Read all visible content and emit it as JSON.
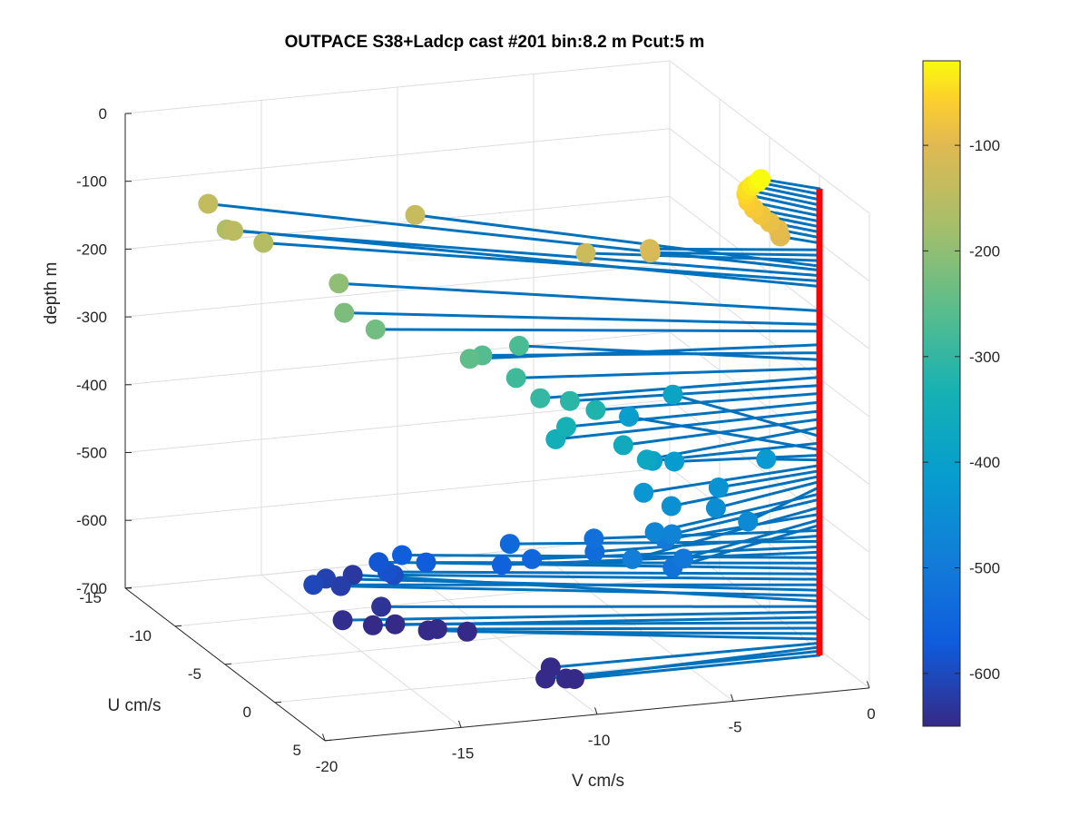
{
  "chart_data": {
    "type": "scatter",
    "title": "OUTPACE S38+Ladcp cast #201 bin:8.2 m  Pcut:5 m",
    "xlabel": "V cm/s",
    "ylabel": "U cm/s",
    "zlabel": "depth m",
    "xlim": [
      -20,
      0
    ],
    "ylim": [
      -15,
      5
    ],
    "zlim": [
      -700,
      0
    ],
    "x_ticks": [
      -20,
      -15,
      -10,
      -5,
      0
    ],
    "y_ticks": [
      -15,
      -10,
      -5,
      0,
      5
    ],
    "z_ticks": [
      0,
      -100,
      -200,
      -300,
      -400,
      -500,
      -600,
      -700
    ],
    "grid": true,
    "view": "3d",
    "origin_line_color": "#ff0000",
    "vector_color": "#0072bd",
    "colorbar": {
      "label": "",
      "range": [
        -650,
        -20
      ],
      "ticks": [
        -100,
        -200,
        -300,
        -400,
        -500,
        -600
      ],
      "colormap": "parula",
      "location": "right"
    },
    "points": [
      {
        "depth": -20,
        "v": -1.5,
        "u": -1.8
      },
      {
        "depth": -28,
        "v": -1.5,
        "u": -2.1
      },
      {
        "depth": -36,
        "v": -1.6,
        "u": -2.4
      },
      {
        "depth": -44,
        "v": -1.7,
        "u": -2.6
      },
      {
        "depth": -52,
        "v": -1.7,
        "u": -2.7
      },
      {
        "depth": -60,
        "v": -1.7,
        "u": -2.5
      },
      {
        "depth": -68,
        "v": -1.6,
        "u": -2.2
      },
      {
        "depth": -76,
        "v": -1.4,
        "u": -2.0
      },
      {
        "depth": -84,
        "v": -1.2,
        "u": -1.7
      },
      {
        "depth": -92,
        "v": -1.0,
        "u": -1.4
      },
      {
        "depth": -100,
        "v": -1.0,
        "u": -1.2
      },
      {
        "depth": -110,
        "v": -5.5,
        "u": -2.0
      },
      {
        "depth": -118,
        "v": -5.4,
        "u": -2.2
      },
      {
        "depth": -126,
        "v": -7.3,
        "u": -3.5
      },
      {
        "depth": -134,
        "v": -11.0,
        "u": -10.5
      },
      {
        "depth": -140,
        "v": -17.1,
        "u": -14.6
      },
      {
        "depth": -148,
        "v": -17.2,
        "u": -11.8
      },
      {
        "depth": -156,
        "v": -16.5,
        "u": -10.7
      },
      {
        "depth": -164,
        "v": -16.9,
        "u": -13.3
      },
      {
        "depth": -200,
        "v": -14.5,
        "u": -8.6
      },
      {
        "depth": -220,
        "v": -15.0,
        "u": -6.7
      },
      {
        "depth": -230,
        "v": -14.4,
        "u": -5.2
      },
      {
        "depth": -250,
        "v": -12.0,
        "u": -2.3
      },
      {
        "depth": -262,
        "v": -11.1,
        "u": -3.5
      },
      {
        "depth": -272,
        "v": -9.2,
        "u": -5.0
      },
      {
        "depth": -285,
        "v": -10.3,
        "u": -2.3
      },
      {
        "depth": -298,
        "v": -10.0,
        "u": -0.7
      },
      {
        "depth": -310,
        "v": -8.8,
        "u": -1.0
      },
      {
        "depth": -322,
        "v": -8.0,
        "u": -0.6
      },
      {
        "depth": -335,
        "v": -9.3,
        "u": 0.0
      },
      {
        "depth": -348,
        "v": -9.8,
        "u": 0.3
      },
      {
        "depth": -360,
        "v": -7.5,
        "u": 0.8
      },
      {
        "depth": -372,
        "v": -7.0,
        "u": 1.8
      },
      {
        "depth": -385,
        "v": -3.0,
        "u": -6.5
      },
      {
        "depth": -395,
        "v": -6.2,
        "u": 0.2
      },
      {
        "depth": -405,
        "v": -4.8,
        "u": -6.0
      },
      {
        "depth": -413,
        "v": -5.0,
        "u": -0.9
      },
      {
        "depth": -420,
        "v": -1.7,
        "u": -0.7
      },
      {
        "depth": -428,
        "v": -6.9,
        "u": 1.2
      },
      {
        "depth": -436,
        "v": -4.0,
        "u": 0.8
      },
      {
        "depth": -444,
        "v": -6.1,
        "u": 1.8
      },
      {
        "depth": -452,
        "v": -4.5,
        "u": 1.9
      },
      {
        "depth": -460,
        "v": -3.8,
        "u": 3.2
      },
      {
        "depth": -470,
        "v": -7.0,
        "u": 2.6
      },
      {
        "depth": -478,
        "v": -6.3,
        "u": 2.4
      },
      {
        "depth": -490,
        "v": -8.3,
        "u": 3.9
      },
      {
        "depth": -500,
        "v": -6.1,
        "u": 1.2
      },
      {
        "depth": -508,
        "v": -6.1,
        "u": 3.0
      },
      {
        "depth": -516,
        "v": -6.6,
        "u": 3.3
      },
      {
        "depth": -524,
        "v": -7.7,
        "u": -1.6
      },
      {
        "depth": -532,
        "v": -8.0,
        "u": -0.7
      },
      {
        "depth": -540,
        "v": -10.2,
        "u": -3.2
      },
      {
        "depth": -548,
        "v": -9.9,
        "u": -1.8
      },
      {
        "depth": -556,
        "v": -10.9,
        "u": -2.1
      },
      {
        "depth": -564,
        "v": -13.5,
        "u": -5.0
      },
      {
        "depth": -572,
        "v": -12.8,
        "u": -4.5
      },
      {
        "depth": -580,
        "v": -14.1,
        "u": -5.7
      },
      {
        "depth": -588,
        "v": -14.0,
        "u": -5.1
      },
      {
        "depth": -596,
        "v": -13.7,
        "u": -5.3
      },
      {
        "depth": -604,
        "v": -16.5,
        "u": -5.7
      },
      {
        "depth": -612,
        "v": -15.6,
        "u": -6.9
      },
      {
        "depth": -620,
        "v": -15.2,
        "u": -6.5
      },
      {
        "depth": -628,
        "v": -14.1,
        "u": -8.3
      },
      {
        "depth": -636,
        "v": -14.3,
        "u": -4.9
      },
      {
        "depth": -644,
        "v": -15.9,
        "u": -4.4
      },
      {
        "depth": -652,
        "v": -14.9,
        "u": -4.1
      },
      {
        "depth": -660,
        "v": -13.9,
        "u": -4.6
      },
      {
        "depth": -668,
        "v": -12.5,
        "u": -4.2
      },
      {
        "depth": -676,
        "v": -11.4,
        "u": -4.2
      },
      {
        "depth": -684,
        "v": -12.4,
        "u": -5.4
      },
      {
        "depth": -690,
        "v": -9.8,
        "u": -0.2
      },
      {
        "depth": -696,
        "v": -9.6,
        "u": 0.8
      },
      {
        "depth": -702,
        "v": -10.1,
        "u": 0.1
      },
      {
        "depth": -708,
        "v": -9.0,
        "u": 0.0
      }
    ]
  }
}
